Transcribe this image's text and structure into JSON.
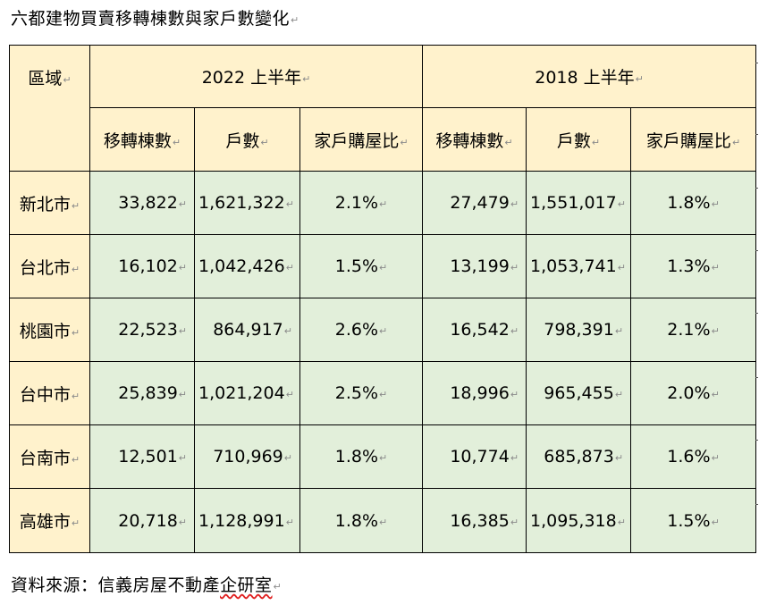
{
  "document": {
    "title": "六都建物買賣移轉棟數與家戶數變化",
    "source_prefix": "資料來源：信義房屋不動產",
    "source_flagged": "企研室",
    "paragraph_mark": "↵"
  },
  "table": {
    "corner_label": "區域",
    "groups": [
      {
        "label": "2022 上半年"
      },
      {
        "label": "2018 上半年"
      }
    ],
    "columns": [
      "移轉棟數",
      "戶數",
      "家戶購屋比",
      "移轉棟數",
      "戶數",
      "家戶購屋比"
    ],
    "rows": [
      {
        "region": "新北市",
        "cells": [
          "33,822",
          "1,621,322",
          "2.1%",
          "27,479",
          "1,551,017",
          "1.8%"
        ]
      },
      {
        "region": "台北市",
        "cells": [
          "16,102",
          "1,042,426",
          "1.5%",
          "13,199",
          "1,053,741",
          "1.3%"
        ]
      },
      {
        "region": "桃園市",
        "cells": [
          "22,523",
          "864,917",
          "2.6%",
          "16,542",
          "798,391",
          "2.1%"
        ]
      },
      {
        "region": "台中市",
        "cells": [
          "25,839",
          "1,021,204",
          "2.5%",
          "18,996",
          "965,455",
          "2.0%"
        ]
      },
      {
        "region": "台南市",
        "cells": [
          "12,501",
          "710,969",
          "1.8%",
          "10,774",
          "685,873",
          "1.6%"
        ]
      },
      {
        "region": "高雄市",
        "cells": [
          "20,718",
          "1,128,991",
          "1.8%",
          "16,385",
          "1,095,318",
          "1.5%"
        ]
      }
    ]
  }
}
